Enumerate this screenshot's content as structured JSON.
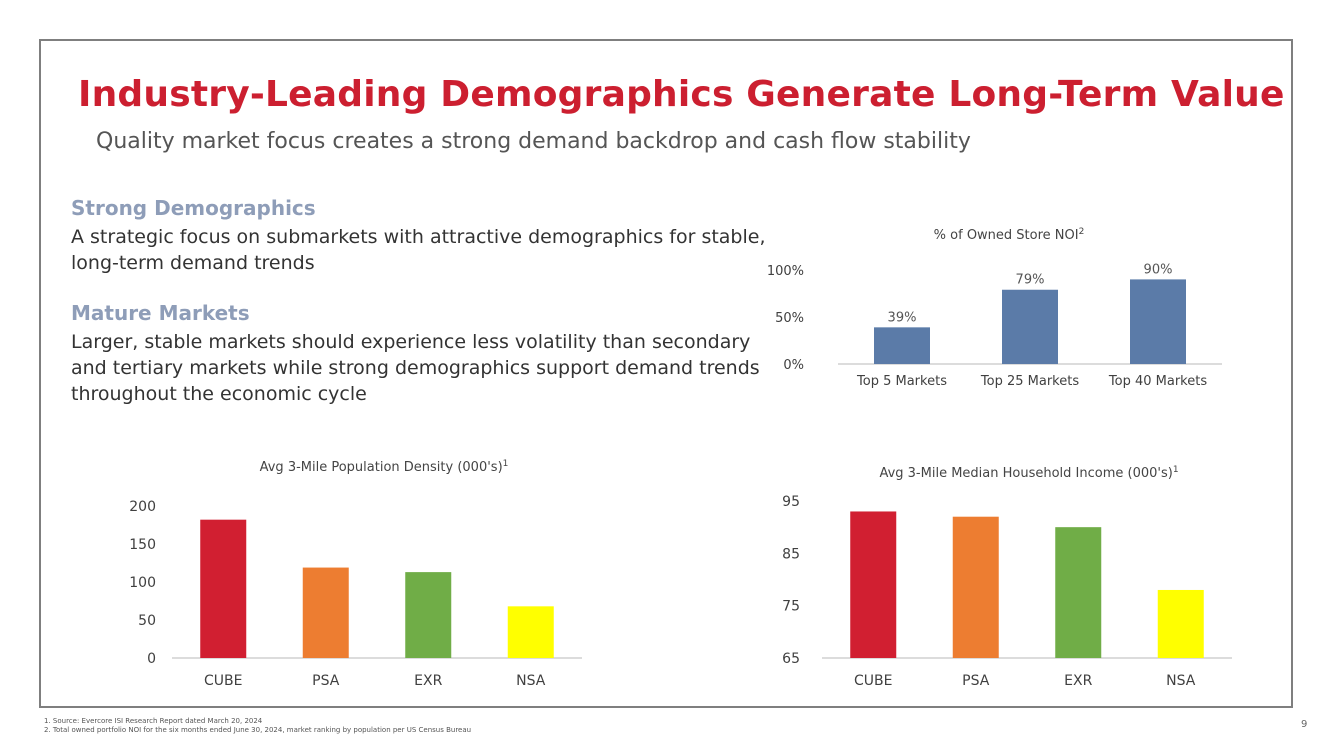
{
  "slide": {
    "title": "Industry-Leading Demographics Generate Long-Term Value",
    "subtitle": "Quality market focus creates a strong demand backdrop and cash flow stability",
    "page_number": "9"
  },
  "sections": [
    {
      "heading": "Strong Demographics",
      "body": "A strategic focus on submarkets with attractive demographics for stable, long-term demand trends"
    },
    {
      "heading": "Mature Markets",
      "body": "Larger, stable markets should experience less volatility than secondary and tertiary markets while strong demographics support demand trends throughout the economic cycle"
    }
  ],
  "footnotes": [
    "1.   Source: Evercore ISI Research Report dated March 20, 2024",
    "2.   Total owned portfolio NOI for the six months ended June 30, 2024, market ranking by population per US Census Bureau"
  ],
  "chart_data": [
    {
      "type": "bar",
      "title": "% of Owned Store NOI",
      "title_sup": "2",
      "categories": [
        "Top 5 Markets",
        "Top 25 Markets",
        "Top 40 Markets"
      ],
      "values": [
        39,
        79,
        90
      ],
      "data_labels": [
        "39%",
        "79%",
        "90%"
      ],
      "ylim": [
        0,
        100
      ],
      "yticks": [
        0,
        50,
        100
      ],
      "ytick_labels": [
        "0%",
        "50%",
        "100%"
      ],
      "colors": [
        "#5b7ba8",
        "#5b7ba8",
        "#5b7ba8"
      ],
      "xlabel": "",
      "ylabel": ""
    },
    {
      "type": "bar",
      "title": "Avg 3-Mile Population Density (000's)",
      "title_sup": "1",
      "categories": [
        "CUBE",
        "PSA",
        "EXR",
        "NSA"
      ],
      "values": [
        182,
        119,
        113,
        68
      ],
      "ylim": [
        0,
        200
      ],
      "yticks": [
        0,
        50,
        100,
        150,
        200
      ],
      "ytick_labels": [
        "0",
        "50",
        "100",
        "150",
        "200"
      ],
      "colors": [
        "#d11f31",
        "#ed7d31",
        "#70ad47",
        "#ffff00"
      ],
      "xlabel": "",
      "ylabel": ""
    },
    {
      "type": "bar",
      "title": "Avg 3-Mile Median Household Income (000's)",
      "title_sup": "1",
      "categories": [
        "CUBE",
        "PSA",
        "EXR",
        "NSA"
      ],
      "values": [
        93,
        92,
        90,
        78
      ],
      "ylim": [
        65,
        95
      ],
      "yticks": [
        65,
        75,
        85,
        95
      ],
      "ytick_labels": [
        "65",
        "75",
        "85",
        "95"
      ],
      "colors": [
        "#d11f31",
        "#ed7d31",
        "#70ad47",
        "#ffff00"
      ],
      "xlabel": "",
      "ylabel": ""
    }
  ]
}
